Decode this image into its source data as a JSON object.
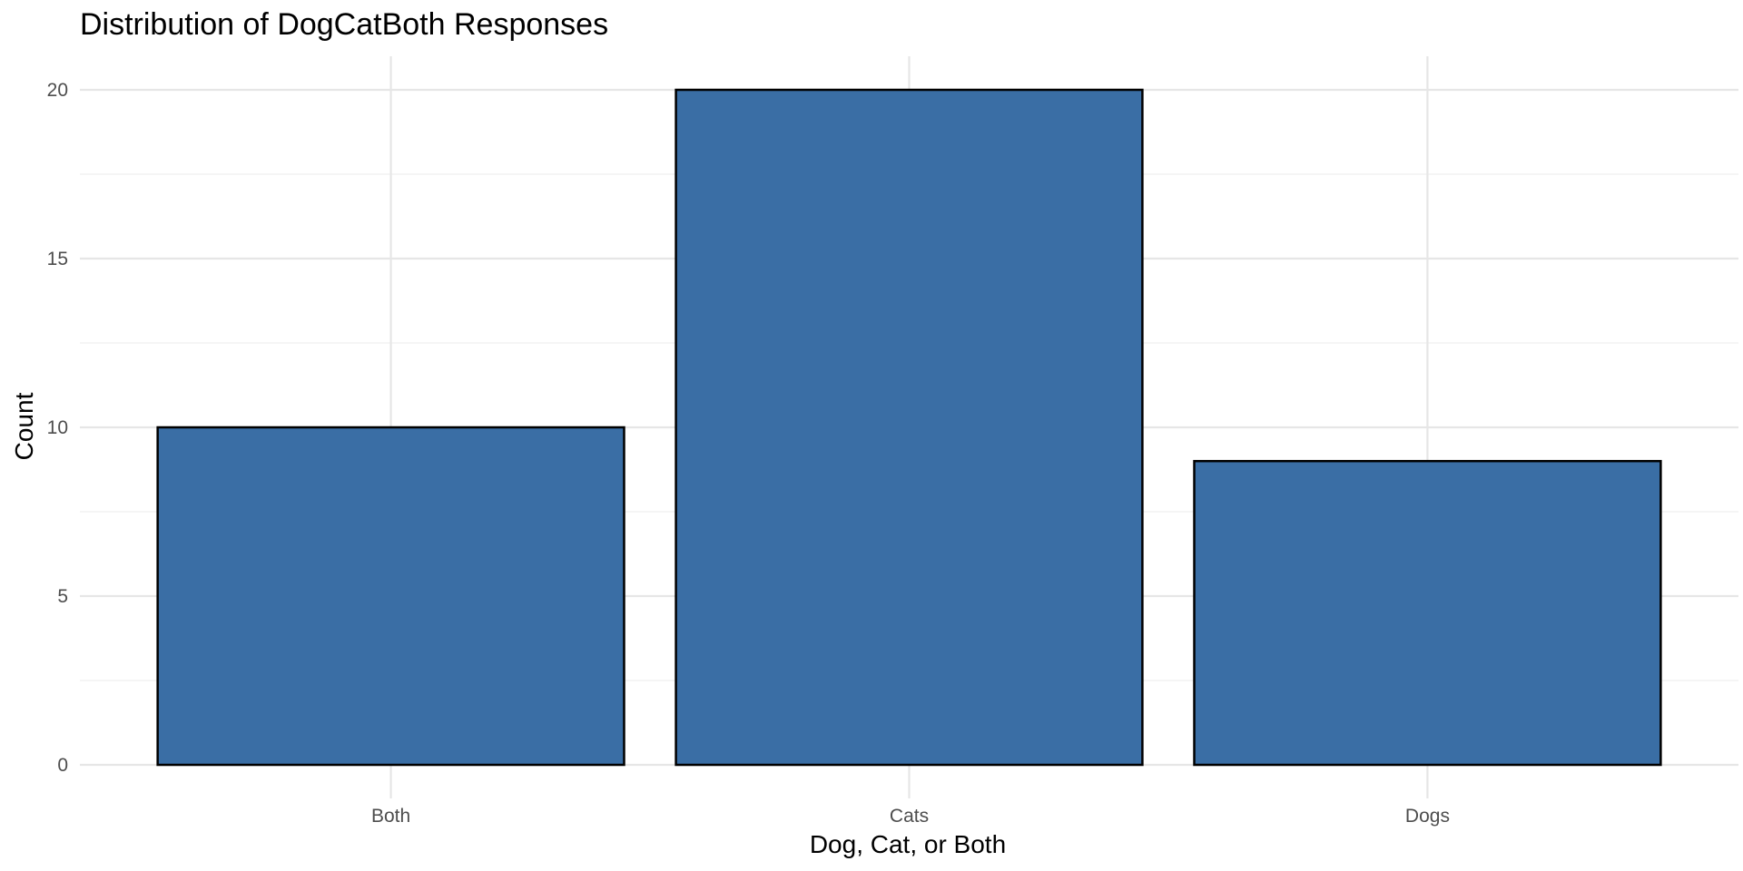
{
  "chart_data": {
    "type": "bar",
    "title": "Distribution of DogCatBoth Responses",
    "xlabel": "Dog, Cat, or Both",
    "ylabel": "Count",
    "categories": [
      "Both",
      "Cats",
      "Dogs"
    ],
    "values": [
      10,
      20,
      9
    ],
    "ylim": [
      0,
      20
    ],
    "yticks": [
      0,
      5,
      10,
      15,
      20
    ],
    "grid": true,
    "bar_color": "#3A6EA5",
    "bar_outline": "#000000"
  }
}
